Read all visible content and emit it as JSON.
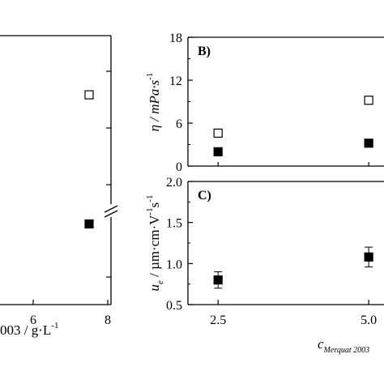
{
  "chart_data": [
    {
      "panel": "left (cropped)",
      "type": "scatter",
      "x": {
        "ticks": [
          6,
          8
        ],
        "tick_labels": [
          "6",
          "8"
        ],
        "label_visible": "003 / g·L",
        "label_superscript": "-1"
      },
      "y": {
        "ticks_unlabeled": true,
        "axis_break": true
      },
      "series": [
        {
          "marker": "open-square",
          "points": [
            {
              "x": 7.5,
              "y_axis_fraction": 0.78
            }
          ]
        },
        {
          "marker": "filled-square",
          "points": [
            {
              "x": 7.5,
              "y_axis_fraction": 0.3
            }
          ]
        }
      ]
    },
    {
      "panel_label": "B)",
      "type": "scatter",
      "y": {
        "label_main": "η / mPa·s",
        "label_superscript": "-1",
        "ylim": [
          0,
          18
        ],
        "ticks": [
          0,
          6,
          12,
          18
        ],
        "tick_labels": [
          "0",
          "6",
          "12",
          "18"
        ]
      },
      "x": {
        "xlim": [
          2.0,
          5.2
        ]
      },
      "series": [
        {
          "marker": "open-square",
          "points": [
            {
              "x": 2.5,
              "y": 4.6
            },
            {
              "x": 5.0,
              "y": 9.2
            }
          ]
        },
        {
          "marker": "filled-square",
          "points": [
            {
              "x": 2.5,
              "y": 2.0
            },
            {
              "x": 5.0,
              "y": 3.2
            }
          ]
        }
      ]
    },
    {
      "panel_label": "C)",
      "type": "scatter",
      "y": {
        "label_main": "u",
        "label_subscript": "e",
        "label_rest": " / µm·cm·V",
        "label_sup1": "-1",
        "label_mid": "s",
        "label_sup2": "-1",
        "ylim": [
          0.5,
          2.0
        ],
        "ticks": [
          0.5,
          1.0,
          1.5,
          2.0
        ],
        "tick_labels": [
          "0.5",
          "1.0",
          "1.5",
          "2.0"
        ]
      },
      "x": {
        "xlim": [
          2.0,
          5.2
        ],
        "ticks": [
          2.5,
          5.0
        ],
        "tick_labels": [
          "2.5",
          "5.0"
        ],
        "label_main": "c",
        "label_subscript": "Merquat 2003"
      },
      "series": [
        {
          "marker": "filled-square",
          "error_bars": true,
          "points": [
            {
              "x": 2.5,
              "y": 0.8,
              "err": 0.1
            },
            {
              "x": 5.0,
              "y": 1.08,
              "err": 0.12
            }
          ]
        }
      ]
    }
  ]
}
